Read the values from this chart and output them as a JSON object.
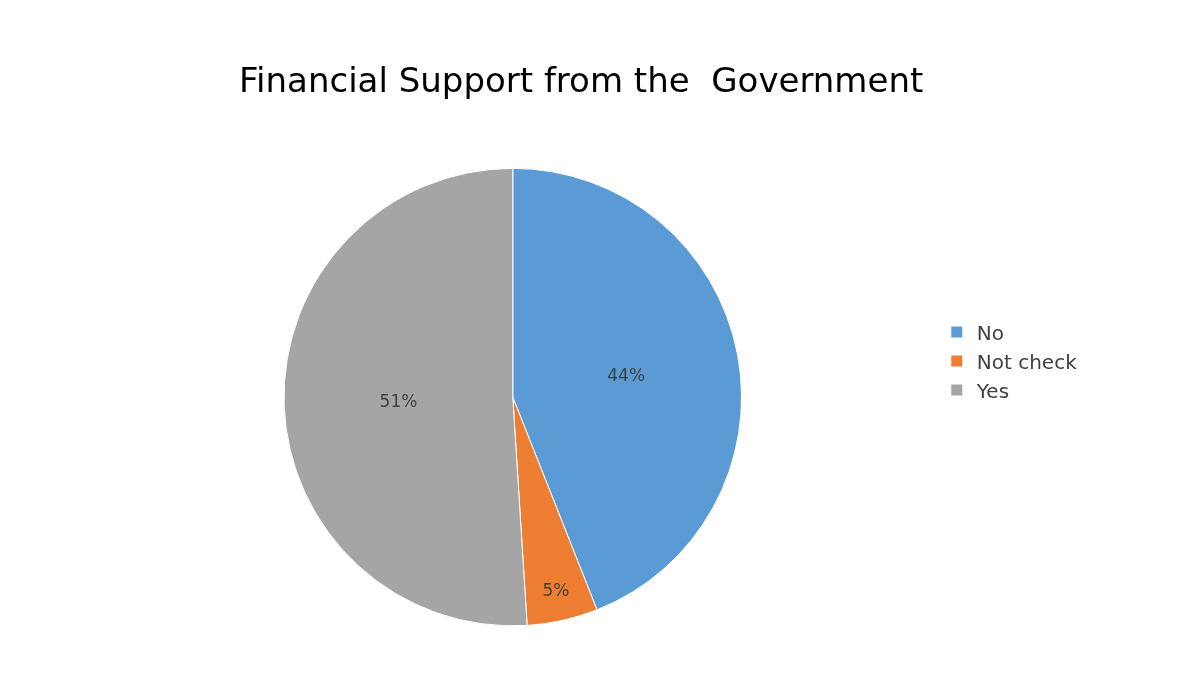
{
  "chart_data": {
    "type": "pie",
    "title": "Financial Support from the  Government",
    "categories": [
      "No",
      "Not check",
      "Yes"
    ],
    "values": [
      44,
      5,
      51
    ],
    "colors": [
      "#5b9bd5",
      "#ed7d31",
      "#a5a5a5"
    ],
    "value_labels": [
      "44%",
      "5%",
      "51%"
    ],
    "legend": "right"
  }
}
